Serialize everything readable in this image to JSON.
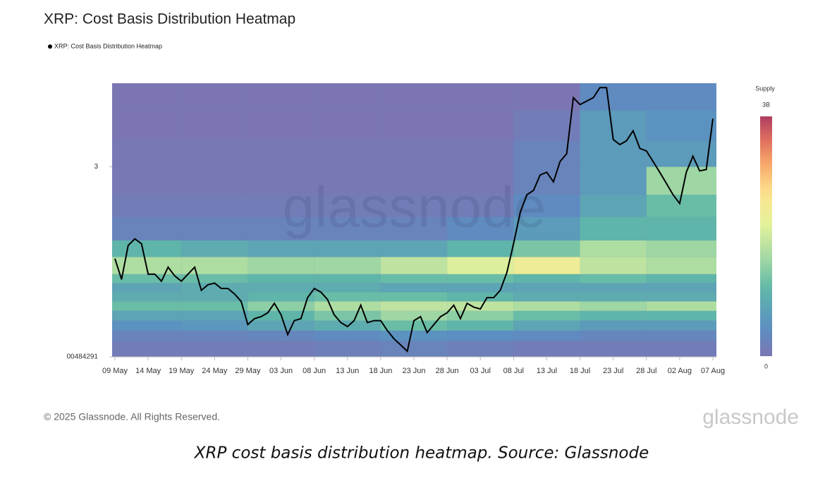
{
  "chart_data": {
    "type": "heatmap",
    "title": "XRP: Cost Basis Distribution Heatmap",
    "x": [
      "09 May",
      "10 May",
      "11 May",
      "12 May",
      "13 May",
      "14 May",
      "15 May",
      "16 May",
      "17 May",
      "18 May",
      "19 May",
      "20 May",
      "21 May",
      "22 May",
      "23 May",
      "24 May",
      "25 May",
      "26 May",
      "27 May",
      "28 May",
      "29 May",
      "30 May",
      "31 May",
      "01 Jun",
      "02 Jun",
      "03 Jun",
      "04 Jun",
      "05 Jun",
      "06 Jun",
      "07 Jun",
      "08 Jun",
      "09 Jun",
      "10 Jun",
      "11 Jun",
      "12 Jun",
      "13 Jun",
      "14 Jun",
      "15 Jun",
      "16 Jun",
      "17 Jun",
      "18 Jun",
      "19 Jun",
      "20 Jun",
      "21 Jun",
      "22 Jun",
      "23 Jun",
      "24 Jun",
      "25 Jun",
      "26 Jun",
      "27 Jun",
      "28 Jun",
      "29 Jun",
      "30 Jun",
      "01 Jul",
      "02 Jul",
      "03 Jul",
      "04 Jul",
      "05 Jul",
      "06 Jul",
      "07 Jul",
      "08 Jul",
      "09 Jul",
      "10 Jul",
      "11 Jul",
      "12 Jul",
      "13 Jul",
      "14 Jul",
      "15 Jul",
      "16 Jul",
      "17 Jul",
      "18 Jul",
      "19 Jul",
      "20 Jul",
      "21 Jul",
      "22 Jul",
      "23 Jul",
      "24 Jul",
      "25 Jul",
      "26 Jul",
      "27 Jul",
      "28 Jul",
      "29 Jul",
      "30 Jul",
      "31 Jul",
      "01 Aug",
      "02 Aug",
      "03 Aug",
      "04 Aug",
      "05 Aug",
      "06 Aug",
      "07 Aug"
    ],
    "xticks": [
      "09 May",
      "14 May",
      "19 May",
      "24 May",
      "29 May",
      "03 Jun",
      "08 Jun",
      "13 Jun",
      "18 Jun",
      "23 Jun",
      "28 Jun",
      "03 Jul",
      "08 Jul",
      "13 Jul",
      "18 Jul",
      "23 Jul",
      "28 Jul",
      "02 Aug",
      "07 Aug"
    ],
    "series": [
      {
        "name": "XRP: Cost Basis Distribution Heatmap",
        "color": "#000000",
        "values": [
          2.39,
          2.27,
          2.47,
          2.51,
          2.48,
          2.3,
          2.3,
          2.26,
          2.34,
          2.29,
          2.26,
          2.3,
          2.34,
          2.21,
          2.24,
          2.25,
          2.22,
          2.22,
          2.19,
          2.15,
          2.03,
          2.06,
          2.07,
          2.09,
          2.14,
          2.08,
          1.98,
          2.05,
          2.06,
          2.17,
          2.22,
          2.2,
          2.16,
          2.08,
          2.04,
          2.02,
          2.05,
          2.13,
          2.04,
          2.05,
          2.05,
          2.0,
          1.96,
          1.93,
          1.9,
          2.05,
          2.07,
          1.99,
          2.03,
          2.07,
          2.09,
          2.13,
          2.06,
          2.14,
          2.12,
          2.11,
          2.17,
          2.17,
          2.21,
          2.31,
          2.48,
          2.68,
          2.8,
          2.83,
          2.94,
          2.96,
          2.89,
          3.04,
          3.1,
          3.56,
          3.5,
          3.53,
          3.56,
          3.65,
          3.65,
          3.21,
          3.17,
          3.2,
          3.28,
          3.14,
          3.12,
          3.04,
          2.96,
          2.88,
          2.8,
          2.74,
          2.96,
          3.08,
          2.97,
          2.98,
          3.38
        ]
      }
    ],
    "ylim": [
      1.874,
      3.69
    ],
    "log_y": true,
    "yticks": [
      3,
      {
        "value": 1.874,
        "label": "00484291"
      }
    ],
    "heatmap": {
      "row_edges": [
        1.874,
        1.95,
        2.0,
        2.05,
        2.1,
        2.15,
        2.2,
        2.25,
        2.3,
        2.4,
        2.5,
        2.65,
        2.8,
        3.0,
        3.2,
        3.45,
        3.69
      ],
      "values": [
        [
          0.1,
          0.1,
          0.1,
          0.15,
          0.2,
          0.15,
          0.1,
          0.1,
          0.1
        ],
        [
          0.2,
          0.2,
          0.25,
          0.3,
          0.4,
          0.35,
          0.3,
          0.25,
          0.25
        ],
        [
          0.4,
          0.45,
          0.6,
          0.7,
          0.9,
          0.8,
          0.6,
          0.5,
          0.5
        ],
        [
          0.6,
          0.6,
          0.8,
          1.0,
          1.2,
          1.1,
          0.9,
          0.8,
          0.8
        ],
        [
          0.9,
          0.9,
          1.1,
          1.3,
          1.4,
          1.4,
          1.3,
          1.2,
          1.3
        ],
        [
          0.7,
          0.7,
          0.8,
          0.9,
          0.9,
          0.8,
          0.7,
          0.7,
          0.7
        ],
        [
          0.6,
          0.7,
          0.7,
          0.7,
          0.6,
          0.6,
          0.6,
          0.6,
          0.6
        ],
        [
          0.9,
          0.9,
          0.8,
          0.8,
          0.9,
          0.9,
          0.8,
          0.9,
          0.8
        ],
        [
          1.3,
          1.3,
          1.2,
          1.2,
          1.4,
          1.6,
          1.8,
          1.4,
          1.3
        ],
        [
          0.8,
          0.7,
          0.6,
          0.6,
          0.6,
          0.8,
          1.0,
          1.3,
          1.2
        ],
        [
          0.2,
          0.2,
          0.2,
          0.2,
          0.2,
          0.3,
          0.5,
          0.8,
          0.8
        ],
        [
          0.1,
          0.1,
          0.1,
          0.1,
          0.1,
          0.1,
          0.3,
          0.6,
          0.9
        ],
        [
          0.05,
          0.05,
          0.05,
          0.05,
          0.05,
          0.05,
          0.2,
          0.5,
          1.2
        ],
        [
          0.05,
          0.05,
          0.05,
          0.05,
          0.05,
          0.05,
          0.2,
          0.5,
          0.5
        ],
        [
          0,
          0,
          0,
          0,
          0,
          0,
          0.1,
          0.5,
          0.4
        ],
        [
          0,
          0,
          0,
          0,
          0,
          0,
          0,
          0.3,
          0.3
        ]
      ]
    },
    "colorbar": {
      "title": "Supply",
      "zlim": [
        0,
        3
      ],
      "zticks": [
        {
          "value": 3,
          "label": "3B"
        },
        0
      ]
    }
  },
  "footer": {
    "copyright": "© 2025 Glassnode. All Rights Reserved.",
    "logo": "glassnode"
  },
  "caption": "XRP cost basis distribution heatmap. Source: Glassnode"
}
